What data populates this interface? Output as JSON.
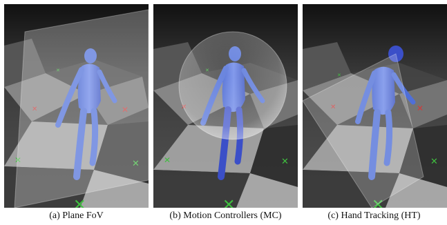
{
  "figure": {
    "panels": [
      {
        "id": "a",
        "caption": "(a) Plane FoV",
        "overlay": "plane"
      },
      {
        "id": "b",
        "caption": "(b) Motion Controllers (MC)",
        "overlay": "sphere"
      },
      {
        "id": "c",
        "caption": "(c) Hand Tracking (HT)",
        "overlay": "cone"
      }
    ],
    "colors": {
      "floor_dark": "#2a2a2a",
      "floor_light": "#9a9a9a",
      "figure_blue": "#4f6fd8",
      "figure_highlight": "#3b4fc8",
      "marker_green": "#3fbf3f",
      "marker_red": "#d23a3a",
      "overlay_white": "#ffffff"
    }
  }
}
